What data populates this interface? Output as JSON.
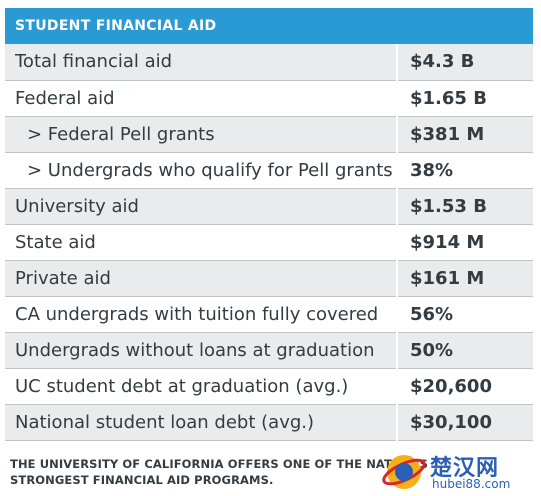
{
  "header": {
    "title": "STUDENT FINANCIAL AID"
  },
  "rows": [
    {
      "label": "Total financial aid",
      "value": "$4.3 B",
      "sub": false
    },
    {
      "label": "Federal aid",
      "value": "$1.65 B",
      "sub": false
    },
    {
      "label": "> Federal Pell grants",
      "value": "$381 M",
      "sub": true
    },
    {
      "label": "> Undergrads who qualify for Pell grants",
      "value": "38%",
      "sub": true
    },
    {
      "label": "University aid",
      "value": "$1.53 B",
      "sub": false
    },
    {
      "label": "State aid",
      "value": "$914 M",
      "sub": false
    },
    {
      "label": "Private aid",
      "value": "$161 M",
      "sub": false
    },
    {
      "label": "CA undergrads with tuition fully covered",
      "value": "56%",
      "sub": false
    },
    {
      "label": "Undergrads without loans at graduation",
      "value": "50%",
      "sub": false
    },
    {
      "label": "UC student debt at graduation (avg.)",
      "value": "$20,600",
      "sub": false
    },
    {
      "label": "National student loan debt (avg.)",
      "value": "$30,100",
      "sub": false
    }
  ],
  "footnote": {
    "line1": "THE UNIVERSITY OF CALIFORNIA OFFERS ONE OF THE NATION'S",
    "line2": "STRONGEST FINANCIAL AID PROGRAMS."
  },
  "watermark": {
    "text": "楚汉网",
    "url": "hubei88.com"
  },
  "colors": {
    "header_bg": "#2a9ad4",
    "row_shade": "#eaebec",
    "text": "#333c42",
    "watermark": "#2b5fb6"
  }
}
